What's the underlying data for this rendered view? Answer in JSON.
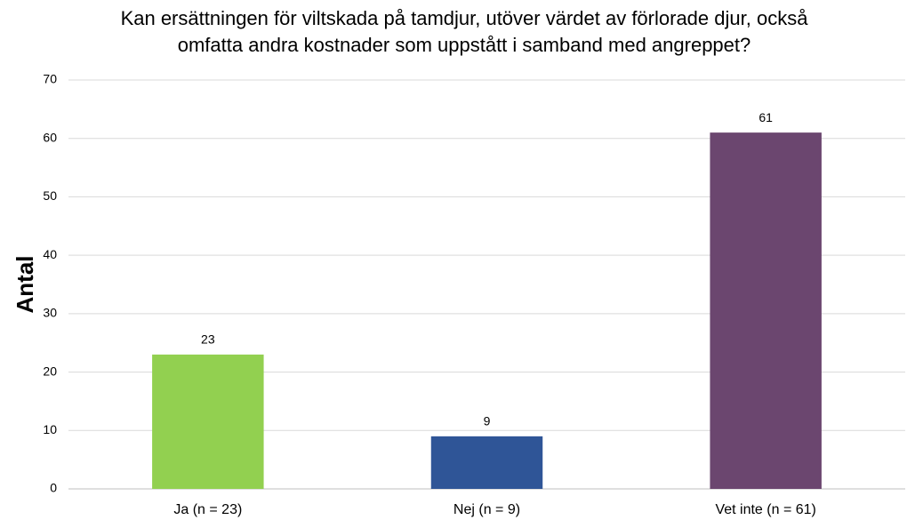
{
  "chart_data": {
    "type": "bar",
    "title": "Kan ersättningen för viltskada på tamdjur, utöver värdet av förlorade djur, också omfatta andra kostnader som uppstått i samband med angreppet?",
    "y_label": "Antal",
    "categories": [
      "Ja (n = 23)",
      "Nej (n = 9)",
      "Vet inte (n = 61)"
    ],
    "values": [
      23,
      9,
      61
    ],
    "colors": [
      "#92d050",
      "#2f5597",
      "#6b466f"
    ],
    "ylim": [
      0,
      70
    ],
    "yticks": [
      0,
      10,
      20,
      30,
      40,
      50,
      60,
      70
    ],
    "grid": true
  }
}
